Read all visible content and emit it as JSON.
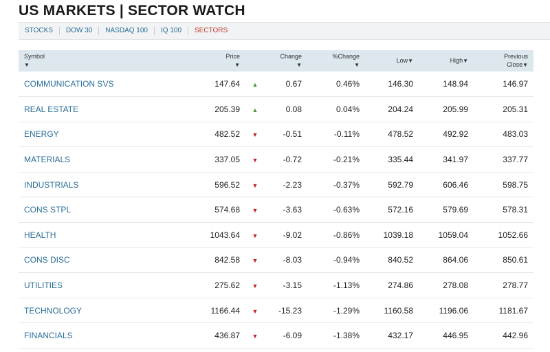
{
  "page": {
    "title": "US MARKETS | SECTOR WATCH"
  },
  "subnav": {
    "tabs": [
      {
        "label": "STOCKS",
        "active": false
      },
      {
        "label": "DOW 30",
        "active": false
      },
      {
        "label": "NASDAQ 100",
        "active": false
      },
      {
        "label": "IQ 100",
        "active": false
      },
      {
        "label": "SECTORS",
        "active": true
      }
    ]
  },
  "table": {
    "headers": {
      "symbol": "Symbol",
      "price": "Price",
      "change": "Change",
      "pct_change": "%Change",
      "low": "Low",
      "high": "High",
      "prev_close_line1": "Previous",
      "prev_close_line2": "Close"
    },
    "sort_icon": "▼",
    "up_icon": "▲",
    "down_icon": "▼",
    "rows": [
      {
        "symbol": "COMMUNICATION SVS",
        "price": "147.64",
        "dir": "up",
        "change": "0.67",
        "pct": "0.46%",
        "low": "146.30",
        "high": "148.94",
        "prev": "146.97"
      },
      {
        "symbol": "REAL ESTATE",
        "price": "205.39",
        "dir": "up",
        "change": "0.08",
        "pct": "0.04%",
        "low": "204.24",
        "high": "205.99",
        "prev": "205.31"
      },
      {
        "symbol": "ENERGY",
        "price": "482.52",
        "dir": "down",
        "change": "-0.51",
        "pct": "-0.11%",
        "low": "478.52",
        "high": "492.92",
        "prev": "483.03"
      },
      {
        "symbol": "MATERIALS",
        "price": "337.05",
        "dir": "down",
        "change": "-0.72",
        "pct": "-0.21%",
        "low": "335.44",
        "high": "341.97",
        "prev": "337.77"
      },
      {
        "symbol": "INDUSTRIALS",
        "price": "596.52",
        "dir": "down",
        "change": "-2.23",
        "pct": "-0.37%",
        "low": "592.79",
        "high": "606.46",
        "prev": "598.75"
      },
      {
        "symbol": "CONS STPL",
        "price": "574.68",
        "dir": "down",
        "change": "-3.63",
        "pct": "-0.63%",
        "low": "572.16",
        "high": "579.69",
        "prev": "578.31"
      },
      {
        "symbol": "HEALTH",
        "price": "1043.64",
        "dir": "down",
        "change": "-9.02",
        "pct": "-0.86%",
        "low": "1039.18",
        "high": "1059.04",
        "prev": "1052.66"
      },
      {
        "symbol": "CONS DISC",
        "price": "842.58",
        "dir": "down",
        "change": "-8.03",
        "pct": "-0.94%",
        "low": "840.52",
        "high": "864.06",
        "prev": "850.61"
      },
      {
        "symbol": "UTILITIES",
        "price": "275.62",
        "dir": "down",
        "change": "-3.15",
        "pct": "-1.13%",
        "low": "274.86",
        "high": "278.08",
        "prev": "278.77"
      },
      {
        "symbol": "TECHNOLOGY",
        "price": "1166.44",
        "dir": "down",
        "change": "-15.23",
        "pct": "-1.29%",
        "low": "1160.58",
        "high": "1196.06",
        "prev": "1181.67"
      },
      {
        "symbol": "FINANCIALS",
        "price": "436.87",
        "dir": "down",
        "change": "-6.09",
        "pct": "-1.38%",
        "low": "432.17",
        "high": "446.95",
        "prev": "442.96"
      }
    ]
  },
  "colors": {
    "link": "#2a6e99",
    "active_tab": "#c0392b",
    "header_bg": "#dde7ee",
    "up": "#4a9a3a",
    "down": "#c0242c"
  }
}
